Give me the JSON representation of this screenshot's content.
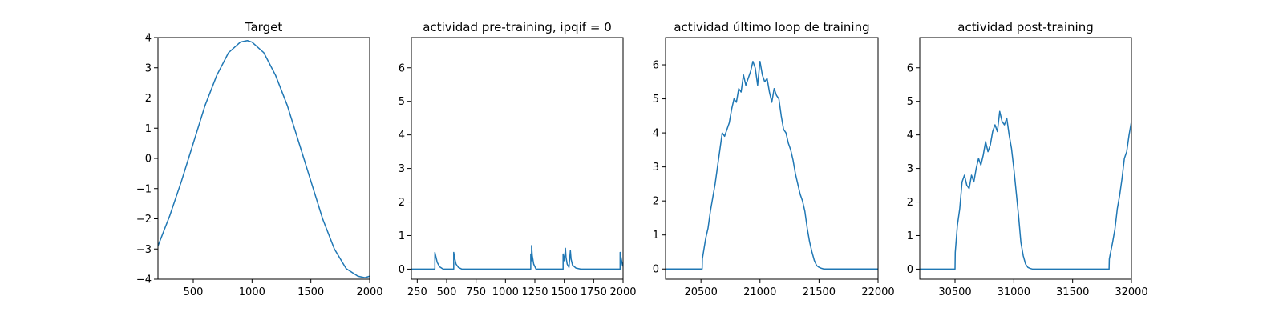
{
  "colors": {
    "series": "#1f77b4",
    "axes": "#000000",
    "background": "#ffffff"
  },
  "chart_data": [
    {
      "type": "line",
      "title": "Target",
      "xlabel": "",
      "ylabel": "",
      "xlim": [
        200,
        2000
      ],
      "ylim": [
        -4,
        4
      ],
      "xticks": [
        500,
        1000,
        1500,
        2000
      ],
      "yticks": [
        -4,
        -3,
        -2,
        -1,
        0,
        1,
        2,
        3,
        4
      ],
      "yticklabels": [
        "−4",
        "−3",
        "−2",
        "−1",
        "0",
        "1",
        "2",
        "3",
        "4"
      ],
      "series": [
        {
          "x": [
            200,
            300,
            400,
            500,
            600,
            700,
            800,
            900,
            960,
            1000,
            1100,
            1200,
            1300,
            1400,
            1500,
            1600,
            1700,
            1800,
            1900,
            1960,
            2000
          ],
          "y": [
            -2.9,
            -1.9,
            -0.75,
            0.5,
            1.75,
            2.75,
            3.5,
            3.85,
            3.9,
            3.85,
            3.5,
            2.75,
            1.75,
            0.5,
            -0.75,
            -2.0,
            -3.0,
            -3.65,
            -3.9,
            -3.95,
            -3.9
          ]
        }
      ]
    },
    {
      "type": "line",
      "title": "actividad pre-training, ipqif = 0",
      "xlabel": "",
      "ylabel": "",
      "xlim": [
        200,
        2000
      ],
      "ylim": [
        -0.3,
        6.9
      ],
      "xticks": [
        250,
        500,
        750,
        1000,
        1250,
        1500,
        1750,
        2000
      ],
      "yticks": [
        0,
        1,
        2,
        3,
        4,
        5,
        6
      ],
      "series": [
        {
          "x": [
            200,
            400,
            400,
            410,
            420,
            440,
            470,
            560,
            560,
            570,
            580,
            600,
            630,
            1215,
            1215,
            1222,
            1222,
            1228,
            1240,
            1260,
            1490,
            1490,
            1500,
            1510,
            1515,
            1525,
            1540,
            1552,
            1558,
            1570,
            1600,
            1640,
            1975,
            1975,
            1985,
            1995,
            2000
          ],
          "y": [
            0,
            0,
            0.5,
            0.35,
            0.2,
            0.07,
            0,
            0,
            0.5,
            0.3,
            0.15,
            0.05,
            0,
            0,
            0.45,
            0.25,
            0.7,
            0.4,
            0.15,
            0,
            0,
            0.45,
            0.25,
            0.62,
            0.35,
            0.15,
            0.05,
            0.55,
            0.3,
            0.12,
            0.03,
            0,
            0,
            0.5,
            0.3,
            0.12,
            0.08
          ]
        }
      ]
    },
    {
      "type": "line",
      "title": "actividad último loop de training",
      "xlabel": "",
      "ylabel": "",
      "xlim": [
        20200,
        22000
      ],
      "ylim": [
        -0.3,
        6.8
      ],
      "xticks": [
        20500,
        21000,
        21500,
        22000
      ],
      "yticks": [
        0,
        1,
        2,
        3,
        4,
        5,
        6
      ],
      "series": [
        {
          "x": [
            20200,
            20510,
            20512,
            20540,
            20560,
            20580,
            20600,
            20620,
            20640,
            20660,
            20680,
            20700,
            20720,
            20740,
            20760,
            20780,
            20800,
            20820,
            20840,
            20860,
            20880,
            20900,
            20920,
            20940,
            20960,
            20980,
            21000,
            21020,
            21040,
            21060,
            21080,
            21100,
            21120,
            21140,
            21160,
            21180,
            21200,
            21220,
            21240,
            21260,
            21280,
            21300,
            21320,
            21340,
            21360,
            21380,
            21400,
            21420,
            21440,
            21460,
            21480,
            21500,
            21520,
            21540,
            21600,
            21700,
            22000
          ],
          "y": [
            0,
            0,
            0.3,
            0.9,
            1.2,
            1.7,
            2.1,
            2.5,
            3.0,
            3.5,
            4.0,
            3.9,
            4.1,
            4.3,
            4.7,
            5.0,
            4.9,
            5.3,
            5.2,
            5.7,
            5.4,
            5.6,
            5.8,
            6.1,
            5.9,
            5.4,
            6.1,
            5.7,
            5.5,
            5.6,
            5.2,
            4.9,
            5.3,
            5.1,
            5.0,
            4.5,
            4.1,
            4.0,
            3.7,
            3.5,
            3.2,
            2.8,
            2.5,
            2.2,
            2.0,
            1.7,
            1.2,
            0.8,
            0.5,
            0.25,
            0.1,
            0.05,
            0.02,
            0,
            0,
            0,
            0
          ]
        }
      ]
    },
    {
      "type": "line",
      "title": "actividad post-training",
      "xlabel": "",
      "ylabel": "",
      "xlim": [
        30200,
        32000
      ],
      "ylim": [
        -0.3,
        6.9
      ],
      "xticks": [
        30500,
        31000,
        31500,
        32000
      ],
      "yticks": [
        0,
        1,
        2,
        3,
        4,
        5,
        6
      ],
      "series": [
        {
          "x": [
            30200,
            30500,
            30502,
            30520,
            30540,
            30560,
            30580,
            30600,
            30620,
            30640,
            30660,
            30680,
            30700,
            30720,
            30740,
            30760,
            30780,
            30800,
            30820,
            30840,
            30860,
            30880,
            30900,
            30920,
            30940,
            30960,
            30980,
            31000,
            31020,
            31040,
            31060,
            31080,
            31100,
            31120,
            31140,
            31160,
            31200,
            31300,
            31810,
            31812,
            31840,
            31860,
            31880,
            31900,
            31920,
            31940,
            31960,
            31980,
            32000
          ],
          "y": [
            0,
            0,
            0.5,
            1.3,
            1.8,
            2.6,
            2.8,
            2.5,
            2.4,
            2.8,
            2.6,
            3.0,
            3.3,
            3.1,
            3.4,
            3.8,
            3.5,
            3.7,
            4.1,
            4.3,
            4.1,
            4.7,
            4.4,
            4.3,
            4.5,
            4.0,
            3.6,
            3.0,
            2.3,
            1.6,
            0.8,
            0.4,
            0.15,
            0.05,
            0.02,
            0,
            0,
            0,
            0,
            0.3,
            0.8,
            1.2,
            1.8,
            2.2,
            2.7,
            3.3,
            3.5,
            4.0,
            4.4
          ]
        }
      ]
    }
  ]
}
